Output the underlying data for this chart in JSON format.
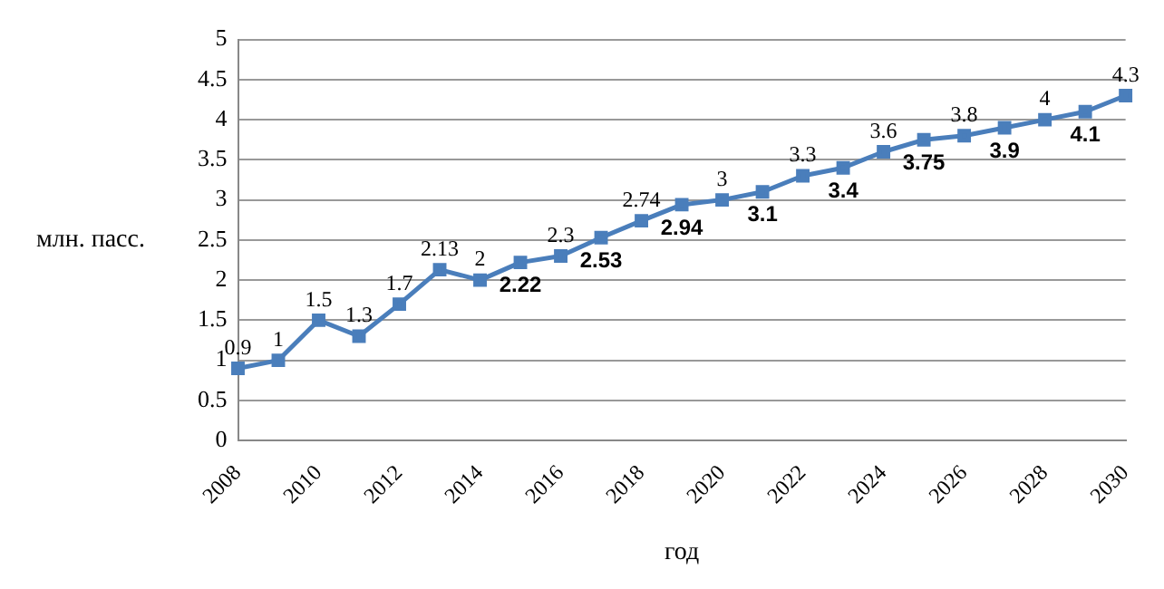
{
  "chart_data": {
    "type": "line",
    "xlabel": "год",
    "ylabel": "млн. пасс.",
    "categories": [
      "2008",
      null,
      "2010",
      null,
      "2012",
      null,
      "2014",
      null,
      "2016",
      null,
      "2018",
      null,
      "2020",
      null,
      "2022",
      null,
      "2024",
      null,
      "2026",
      null,
      "2028",
      null,
      "2030"
    ],
    "series": [
      {
        "color": "#4a7ebb",
        "values": [
          0.9,
          1,
          1.5,
          1.3,
          1.7,
          2.13,
          2,
          2.22,
          2.3,
          2.53,
          2.74,
          2.94,
          3,
          3.1,
          3.3,
          3.4,
          3.6,
          3.75,
          3.8,
          3.9,
          4,
          4.1,
          4.3
        ]
      }
    ],
    "ylim": [
      0,
      5
    ],
    "yticks": [
      0,
      0.5,
      1,
      1.5,
      2,
      2.5,
      3,
      3.5,
      4,
      4.5,
      5
    ],
    "grid": "y",
    "legend": false,
    "marker": "square",
    "line_style": "solid",
    "data_labels": true
  }
}
